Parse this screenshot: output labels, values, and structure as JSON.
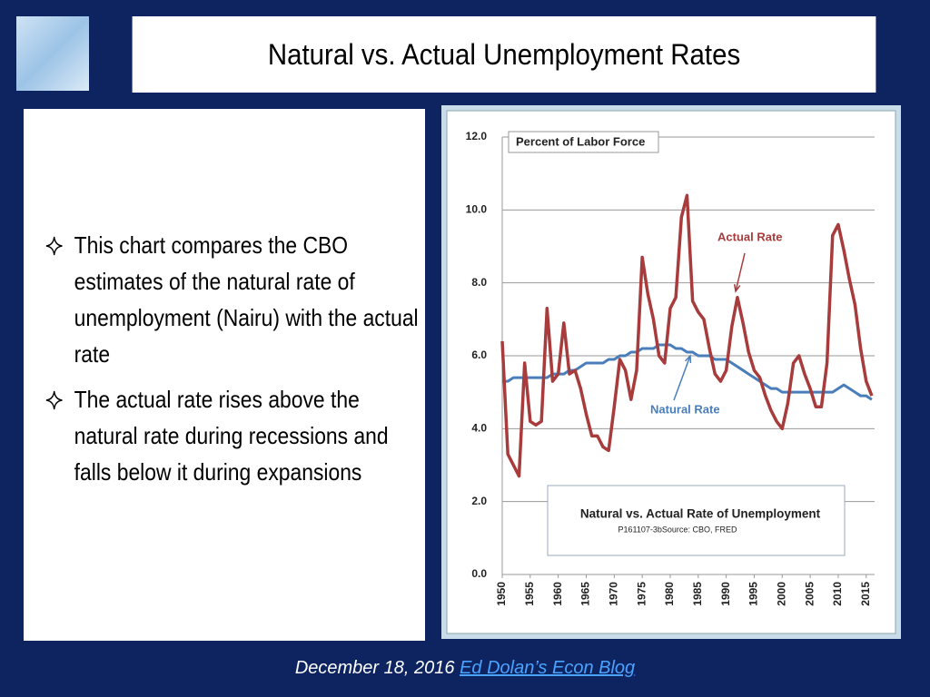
{
  "header": {
    "title": "Natural vs. Actual Unemployment Rates"
  },
  "bullets": [
    "This chart compares the CBO estimates of the natural rate of unemployment (Nairu) with the actual rate",
    "The actual rate rises above the natural rate during recessions and falls below it during expansions"
  ],
  "footer": {
    "date": "December 18, 2016",
    "link": "Ed Dolan’s Econ Blog"
  },
  "chart_data": {
    "type": "line",
    "title": "Natural vs. Actual Rate of Unemployment",
    "source": "P161107-3bSource: CBO, FRED",
    "y_label": "Percent of Labor Force",
    "x": [
      1950,
      1951,
      1952,
      1953,
      1954,
      1955,
      1956,
      1957,
      1958,
      1959,
      1960,
      1961,
      1962,
      1963,
      1964,
      1965,
      1966,
      1967,
      1968,
      1969,
      1970,
      1971,
      1972,
      1973,
      1974,
      1975,
      1976,
      1977,
      1978,
      1979,
      1980,
      1981,
      1982,
      1983,
      1984,
      1985,
      1986,
      1987,
      1988,
      1989,
      1990,
      1991,
      1992,
      1993,
      1994,
      1995,
      1996,
      1997,
      1998,
      1999,
      2000,
      2001,
      2002,
      2003,
      2004,
      2005,
      2006,
      2007,
      2008,
      2009,
      2010,
      2011,
      2012,
      2013,
      2014,
      2015,
      2016
    ],
    "series": [
      {
        "name": "Actual Rate",
        "color": "#a83b3b",
        "values": [
          6.4,
          3.3,
          3.0,
          2.7,
          5.8,
          4.2,
          4.1,
          4.2,
          7.3,
          5.3,
          5.5,
          6.9,
          5.5,
          5.6,
          5.1,
          4.4,
          3.8,
          3.8,
          3.5,
          3.4,
          4.6,
          5.9,
          5.6,
          4.8,
          5.6,
          8.7,
          7.7,
          7.0,
          6.0,
          5.8,
          7.3,
          7.6,
          9.8,
          10.4,
          7.5,
          7.2,
          7.0,
          6.2,
          5.5,
          5.3,
          5.6,
          6.8,
          7.6,
          6.9,
          6.1,
          5.6,
          5.4,
          4.9,
          4.5,
          4.2,
          4.0,
          4.7,
          5.8,
          6.0,
          5.5,
          5.1,
          4.6,
          4.6,
          5.8,
          9.3,
          9.6,
          8.9,
          8.1,
          7.4,
          6.2,
          5.3,
          4.9
        ]
      },
      {
        "name": "Natural Rate",
        "color": "#4a7ebb",
        "values": [
          5.3,
          5.3,
          5.4,
          5.4,
          5.4,
          5.4,
          5.4,
          5.4,
          5.4,
          5.5,
          5.5,
          5.5,
          5.6,
          5.6,
          5.7,
          5.8,
          5.8,
          5.8,
          5.8,
          5.9,
          5.9,
          6.0,
          6.0,
          6.1,
          6.1,
          6.2,
          6.2,
          6.2,
          6.3,
          6.3,
          6.3,
          6.2,
          6.2,
          6.1,
          6.1,
          6.0,
          6.0,
          6.0,
          5.9,
          5.9,
          5.9,
          5.8,
          5.7,
          5.6,
          5.5,
          5.4,
          5.3,
          5.2,
          5.1,
          5.1,
          5.0,
          5.0,
          5.0,
          5.0,
          5.0,
          5.0,
          5.0,
          5.0,
          5.0,
          5.0,
          5.1,
          5.2,
          5.1,
          5.0,
          4.9,
          4.9,
          4.8
        ]
      }
    ],
    "xlim": [
      1950,
      2016.5
    ],
    "xticks": [
      1950,
      1955,
      1960,
      1965,
      1970,
      1975,
      1980,
      1985,
      1990,
      1995,
      2000,
      2005,
      2010,
      2015
    ],
    "ylim": [
      0,
      12
    ],
    "yticks": [
      {
        "value": 0,
        "label": "0.0"
      },
      {
        "value": 2,
        "label": "2.0"
      },
      {
        "value": 4,
        "label": "4.0"
      },
      {
        "value": 6,
        "label": "6.0"
      },
      {
        "value": 8,
        "label": "8.0"
      },
      {
        "value": 10,
        "label": "10.0"
      },
      {
        "value": 12,
        "label": "12.0"
      }
    ],
    "grid": true
  }
}
